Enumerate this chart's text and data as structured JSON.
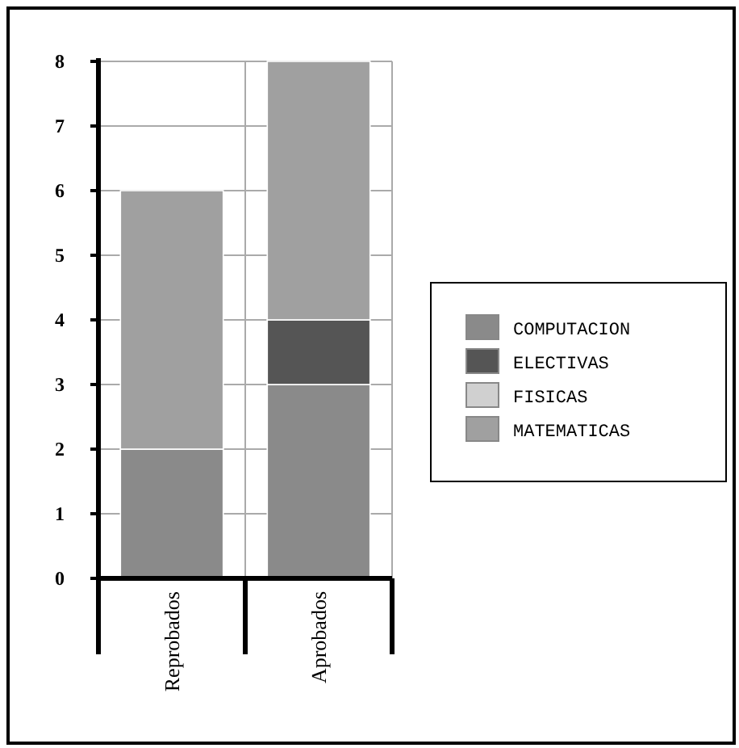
{
  "chart_data": {
    "type": "bar",
    "stacked": true,
    "categories": [
      "Reprobados",
      "Aprobados"
    ],
    "series": [
      {
        "name": "COMPUTACION",
        "color": "#8a8a8a",
        "values": [
          2,
          3
        ]
      },
      {
        "name": "ELECTIVAS",
        "color": "#555555",
        "values": [
          0,
          1
        ]
      },
      {
        "name": "FISICAS",
        "color": "#d0d0d0",
        "values": [
          0,
          0
        ]
      },
      {
        "name": "MATEMATICAS",
        "color": "#a0a0a0",
        "values": [
          4,
          4
        ]
      }
    ],
    "ylim": [
      0,
      8
    ],
    "yticks": [
      0,
      1,
      2,
      3,
      4,
      5,
      6,
      7,
      8
    ],
    "grid": true,
    "legend": "right"
  }
}
